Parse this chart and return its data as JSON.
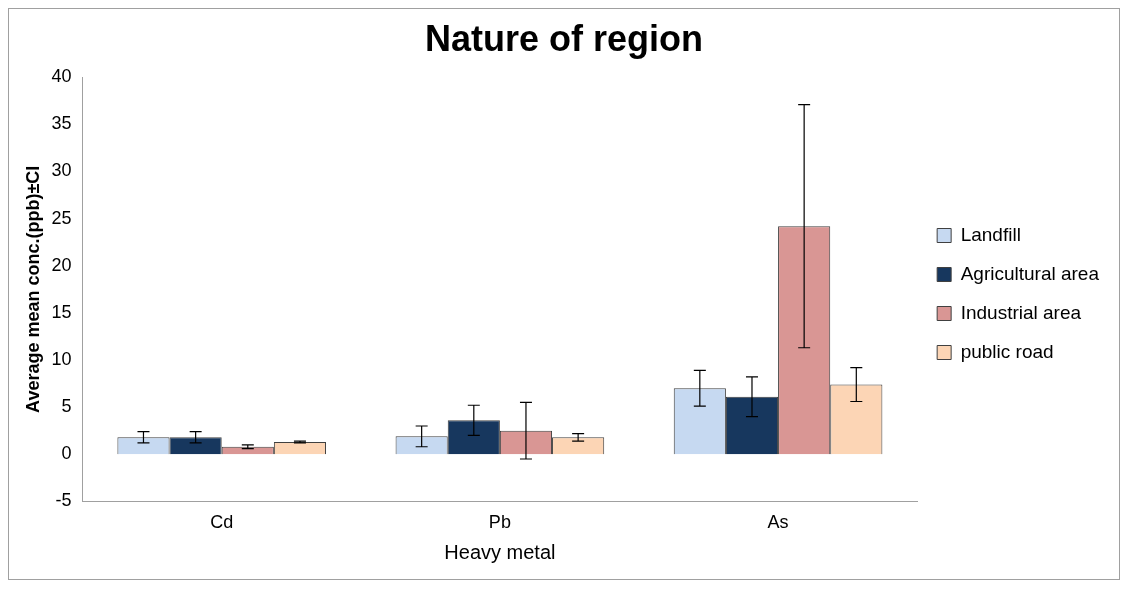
{
  "chart_data": {
    "type": "bar",
    "title": "Nature of region",
    "xlabel": "Heavy metal",
    "ylabel": "Average mean conc.(ppb)±CI",
    "categories": [
      "Cd",
      "Pb",
      "As"
    ],
    "series": [
      {
        "name": "Landfill",
        "color": "#c6d9f1",
        "values": [
          1.8,
          1.9,
          7.0
        ],
        "errors": [
          0.6,
          1.1,
          1.9
        ]
      },
      {
        "name": "Agricultural area",
        "color": "#17375e",
        "values": [
          1.8,
          3.6,
          6.1
        ],
        "errors": [
          0.6,
          1.6,
          2.1
        ]
      },
      {
        "name": "Industrial area",
        "color": "#d99694",
        "values": [
          0.8,
          2.5,
          24.2
        ],
        "errors": [
          0.2,
          3.0,
          12.9
        ]
      },
      {
        "name": "public road",
        "color": "#fcd5b5",
        "values": [
          1.3,
          1.8,
          7.4
        ],
        "errors": [
          0.1,
          0.4,
          1.8
        ]
      }
    ],
    "ylim": [
      -5,
      40
    ],
    "yticks": [
      -5,
      0,
      5,
      10,
      15,
      20,
      25,
      30,
      35,
      40
    ],
    "grid": false,
    "legend": "right"
  }
}
